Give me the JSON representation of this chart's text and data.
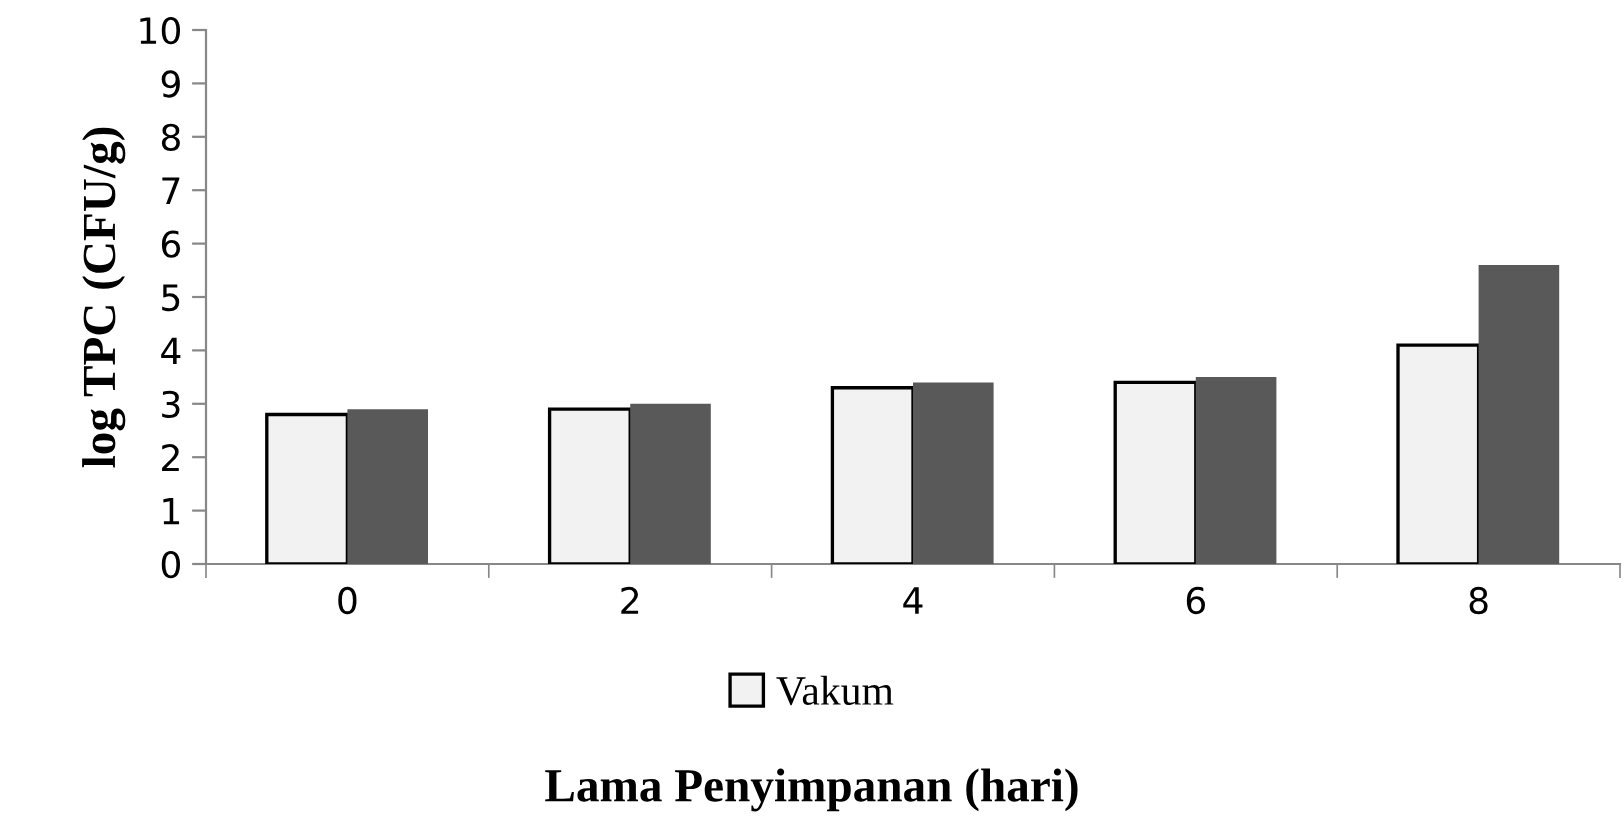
{
  "chart_data": {
    "type": "bar",
    "xlabel": "Lama Penyimpanan (hari)",
    "ylabel": "log TPC (CFU/g)",
    "categories": [
      "0",
      "2",
      "4",
      "6",
      "8"
    ],
    "series": [
      {
        "name": "Vakum",
        "color": "#f2f2f2",
        "values": [
          2.8,
          2.9,
          3.3,
          3.4,
          4.1
        ]
      },
      {
        "color": "#595959",
        "values": [
          2.9,
          3.0,
          3.4,
          3.5,
          5.6
        ]
      }
    ],
    "ylim": [
      0,
      10
    ],
    "yticks": [
      0,
      1,
      2,
      3,
      4,
      5,
      6,
      7,
      8,
      9,
      10
    ],
    "grid": false,
    "legend": "bottom"
  }
}
